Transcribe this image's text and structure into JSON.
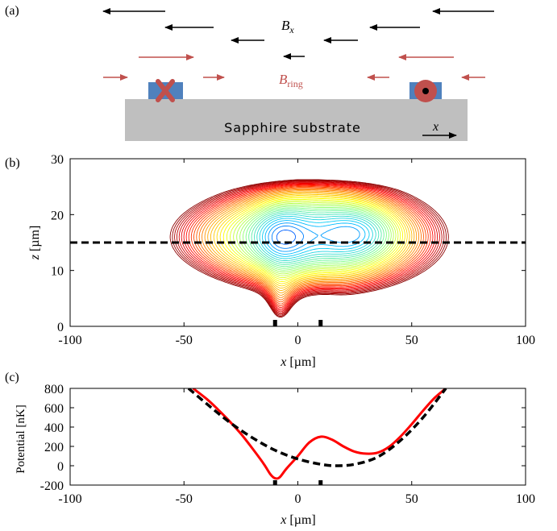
{
  "panel_labels": [
    "(a)",
    "(b)",
    "(c)"
  ],
  "schematic": {
    "field_label_main": "B",
    "field_label_main_sub": "x",
    "field_label_ring": "B",
    "field_label_ring_sub": "ring",
    "substrate_label": "Sapphire substrate",
    "axis_label": "x",
    "colors": {
      "field_arrow": "#000000",
      "ring_arrow": "#c0504d",
      "wire": "#4f81bd",
      "substrate": "#bfbfbf",
      "marker": "#c0504d"
    },
    "icons": [
      "cross-marker-icon",
      "dot-marker-icon"
    ]
  },
  "chart_data": [
    {
      "type": "contour",
      "panel": "(b)",
      "xlabel_main": "x",
      "xlabel_unit": " [µm]",
      "ylabel_main": "z",
      "ylabel_unit": " [µm]",
      "xlim": [
        -100,
        100
      ],
      "ylim": [
        0,
        30
      ],
      "xticks": [
        "-100",
        "-50",
        "0",
        "50",
        "100"
      ],
      "yticks": [
        "0",
        "10",
        "20",
        "30"
      ],
      "dashed_line_z": 15,
      "wire_positions_x": [
        -10,
        10
      ],
      "minima": [
        {
          "x": -8,
          "z": 16
        },
        {
          "x": 28,
          "z": 17
        }
      ],
      "colormap": [
        "#00008b",
        "#0000ff",
        "#00c8ff",
        "#7fff7f",
        "#ffff00",
        "#ff8c00",
        "#ff0000",
        "#8b0000"
      ]
    },
    {
      "type": "line",
      "panel": "(c)",
      "xlabel_main": "x",
      "xlabel_unit": " [µm]",
      "ylabel": "Potential [nK]",
      "xlim": [
        -100,
        100
      ],
      "ylim": [
        -200,
        800
      ],
      "xticks": [
        "-100",
        "-50",
        "0",
        "50",
        "100"
      ],
      "yticks": [
        "-200",
        "0",
        "200",
        "400",
        "600",
        "800"
      ],
      "wire_positions_x": [
        -10,
        10
      ],
      "series": [
        {
          "style": "solid",
          "color": "#ff0000",
          "x": [
            -46,
            -40,
            -35,
            -30,
            -25,
            -20,
            -15,
            -12,
            -10,
            -8,
            -5,
            0,
            5,
            10,
            15,
            20,
            25,
            30,
            35,
            40,
            45,
            50,
            55,
            60,
            65
          ],
          "y": [
            800,
            690,
            580,
            460,
            330,
            180,
            20,
            -90,
            -130,
            -120,
            -30,
            100,
            240,
            300,
            270,
            200,
            145,
            125,
            135,
            195,
            300,
            430,
            570,
            700,
            800
          ]
        },
        {
          "style": "dashed",
          "color": "#000000",
          "x": [
            -48,
            -40,
            -30,
            -20,
            -10,
            0,
            10,
            17,
            25,
            35,
            45,
            55,
            65
          ],
          "y": [
            800,
            640,
            450,
            290,
            160,
            70,
            15,
            0,
            15,
            90,
            260,
            500,
            800
          ]
        }
      ]
    }
  ]
}
